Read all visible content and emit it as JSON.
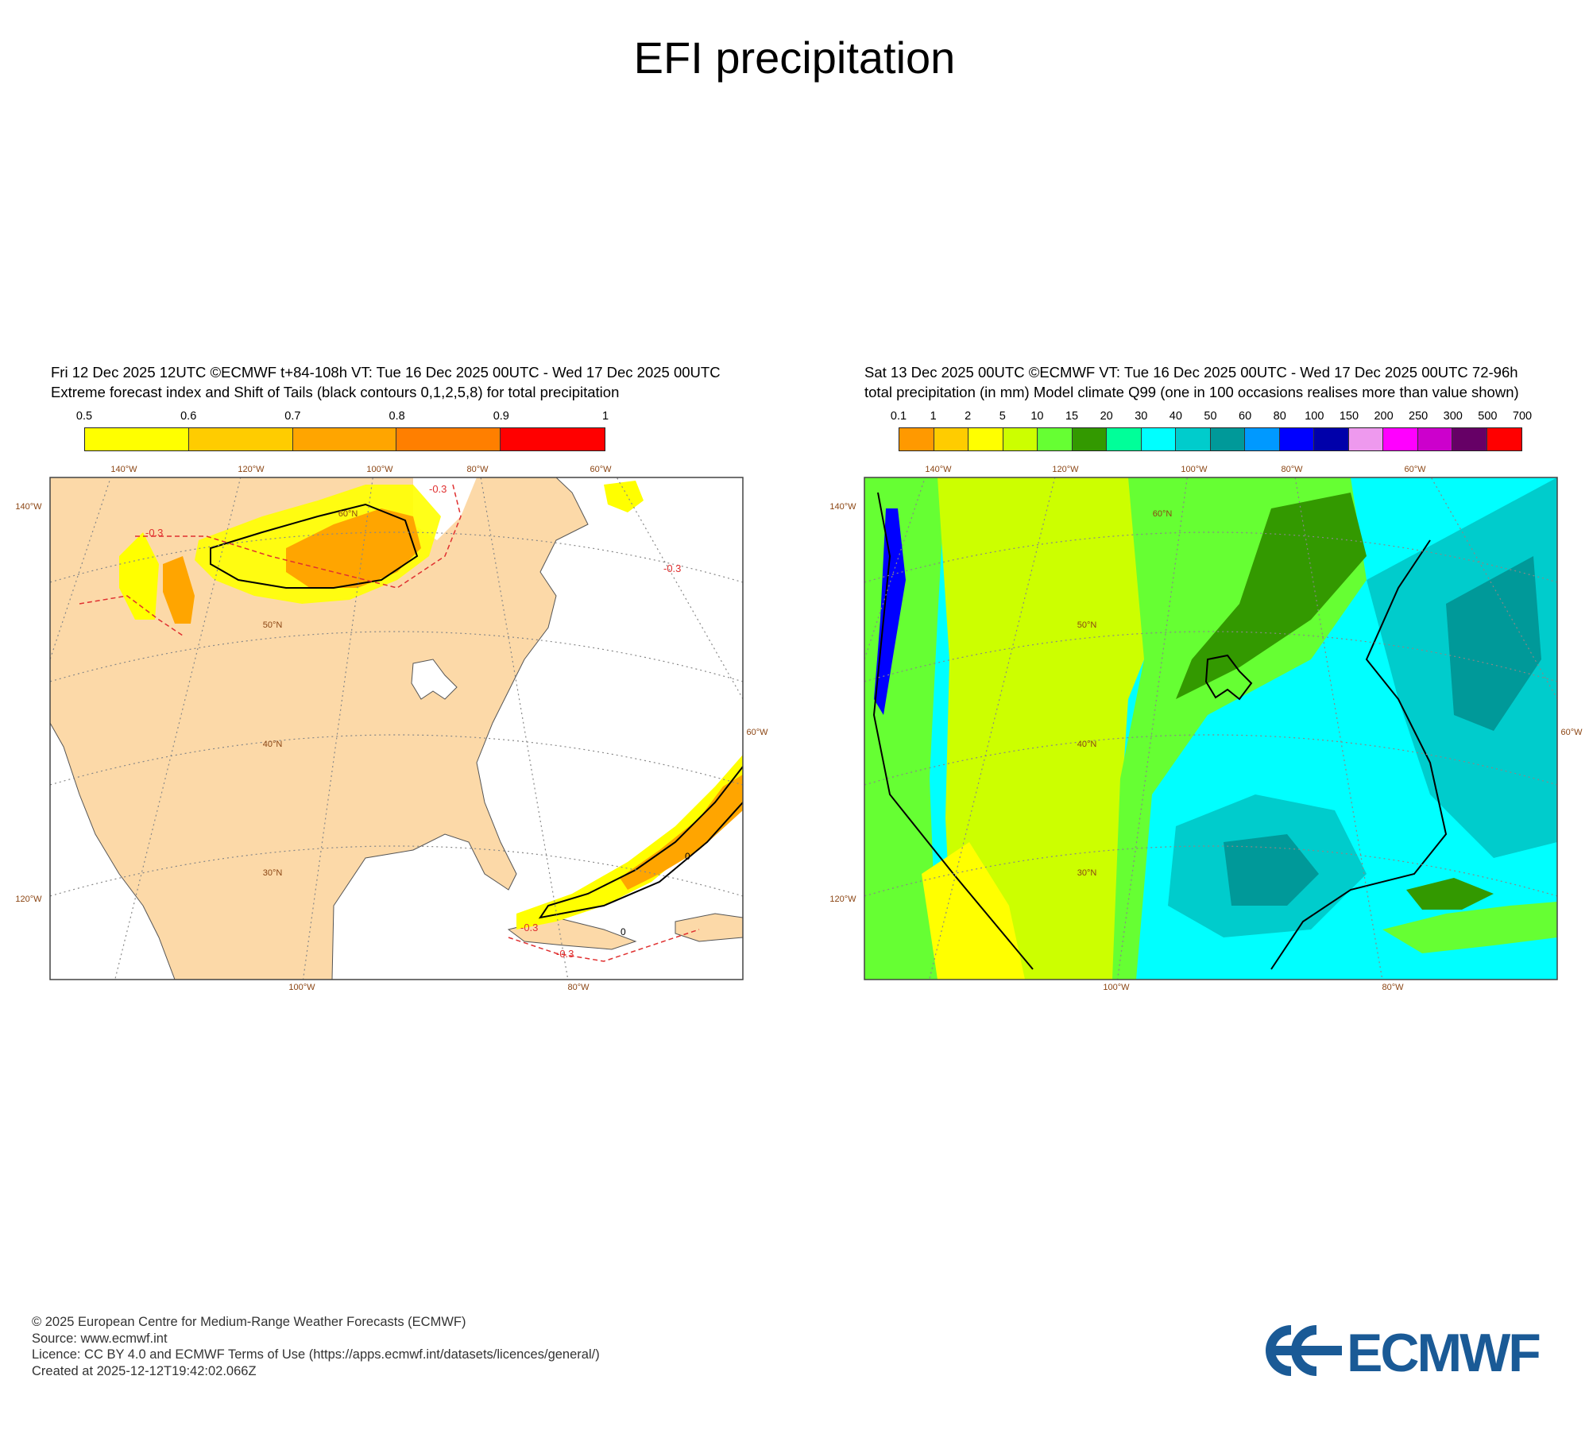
{
  "title": "EFI precipitation",
  "left_panel": {
    "header_line1": "Fri 12 Dec 2025 12UTC ©ECMWF t+84-108h  VT: Tue 16 Dec 2025 00UTC - Wed 17 Dec 2025 00UTC",
    "header_line2": "Extreme forecast index and Shift of Tails (black contours 0,1,2,5,8) for total precipitation",
    "colorbar": {
      "ticks": [
        "0.5",
        "0.6",
        "0.7",
        "0.8",
        "0.9",
        "1"
      ],
      "colors": [
        "#ffff00",
        "#ffcc00",
        "#ffa500",
        "#ff7f00",
        "#ff0000"
      ]
    },
    "contour_labels": [
      "-0.3",
      "-0.3",
      "-0.3",
      "-0.3",
      "-0.3"
    ],
    "sot_labels": [
      "0",
      "0"
    ],
    "lon_labels_top": [
      "140°W",
      "120°W",
      "100°W",
      "80°W",
      "60°W"
    ],
    "lon_labels_bottom": [
      "100°W",
      "80°W"
    ],
    "lat_labels_inside": [
      "60°N",
      "50°N",
      "40°N",
      "30°N"
    ],
    "left_edge_labels": [
      "140°W",
      "120°W"
    ],
    "right_edge_labels": [
      "60°W"
    ]
  },
  "right_panel": {
    "header_line1": "Sat 13 Dec 2025 00UTC ©ECMWF VT: Tue 16 Dec 2025 00UTC - Wed 17 Dec 2025 00UTC   72-96h",
    "header_line2": "total precipitation (in mm)  Model climate Q99 (one in 100 occasions realises more than value shown)",
    "colorbar": {
      "ticks": [
        "0.1",
        "1",
        "2",
        "5",
        "10",
        "15",
        "20",
        "30",
        "40",
        "50",
        "60",
        "80",
        "100",
        "150",
        "200",
        "250",
        "300",
        "500",
        "700"
      ],
      "colors": [
        "#ff9900",
        "#ffcc00",
        "#ffff00",
        "#ccff00",
        "#66ff33",
        "#339900",
        "#00ff99",
        "#00ffff",
        "#00cccc",
        "#009999",
        "#0099ff",
        "#0000ff",
        "#0000aa",
        "#ee99ee",
        "#ff00ff",
        "#cc00cc",
        "#660066",
        "#ff0000"
      ]
    },
    "lon_labels_top": [
      "140°W",
      "120°W",
      "100°W",
      "80°W",
      "60°W"
    ],
    "lon_labels_bottom": [
      "100°W",
      "80°W"
    ],
    "lat_labels_inside": [
      "60°N",
      "50°N",
      "40°N",
      "30°N"
    ],
    "left_edge_labels": [
      "140°W",
      "120°W"
    ],
    "right_edge_labels": [
      "60°W"
    ]
  },
  "footer": {
    "line1": "© 2025 European Centre for Medium-Range Weather Forecasts (ECMWF)",
    "line2": "Source: www.ecmwf.int",
    "line3": "Licence: CC BY 4.0 and ECMWF Terms of Use (https://apps.ecmwf.int/datasets/licences/general/)",
    "line4": "Created at 2025-12-12T19:42:02.066Z"
  },
  "logo": {
    "text": "ECMWF",
    "color": "#1a5a96"
  },
  "colors": {
    "land": "#fcd9a8",
    "grid": "#888888",
    "map_label": "#8b4513",
    "neg_contour": "#e03030"
  }
}
